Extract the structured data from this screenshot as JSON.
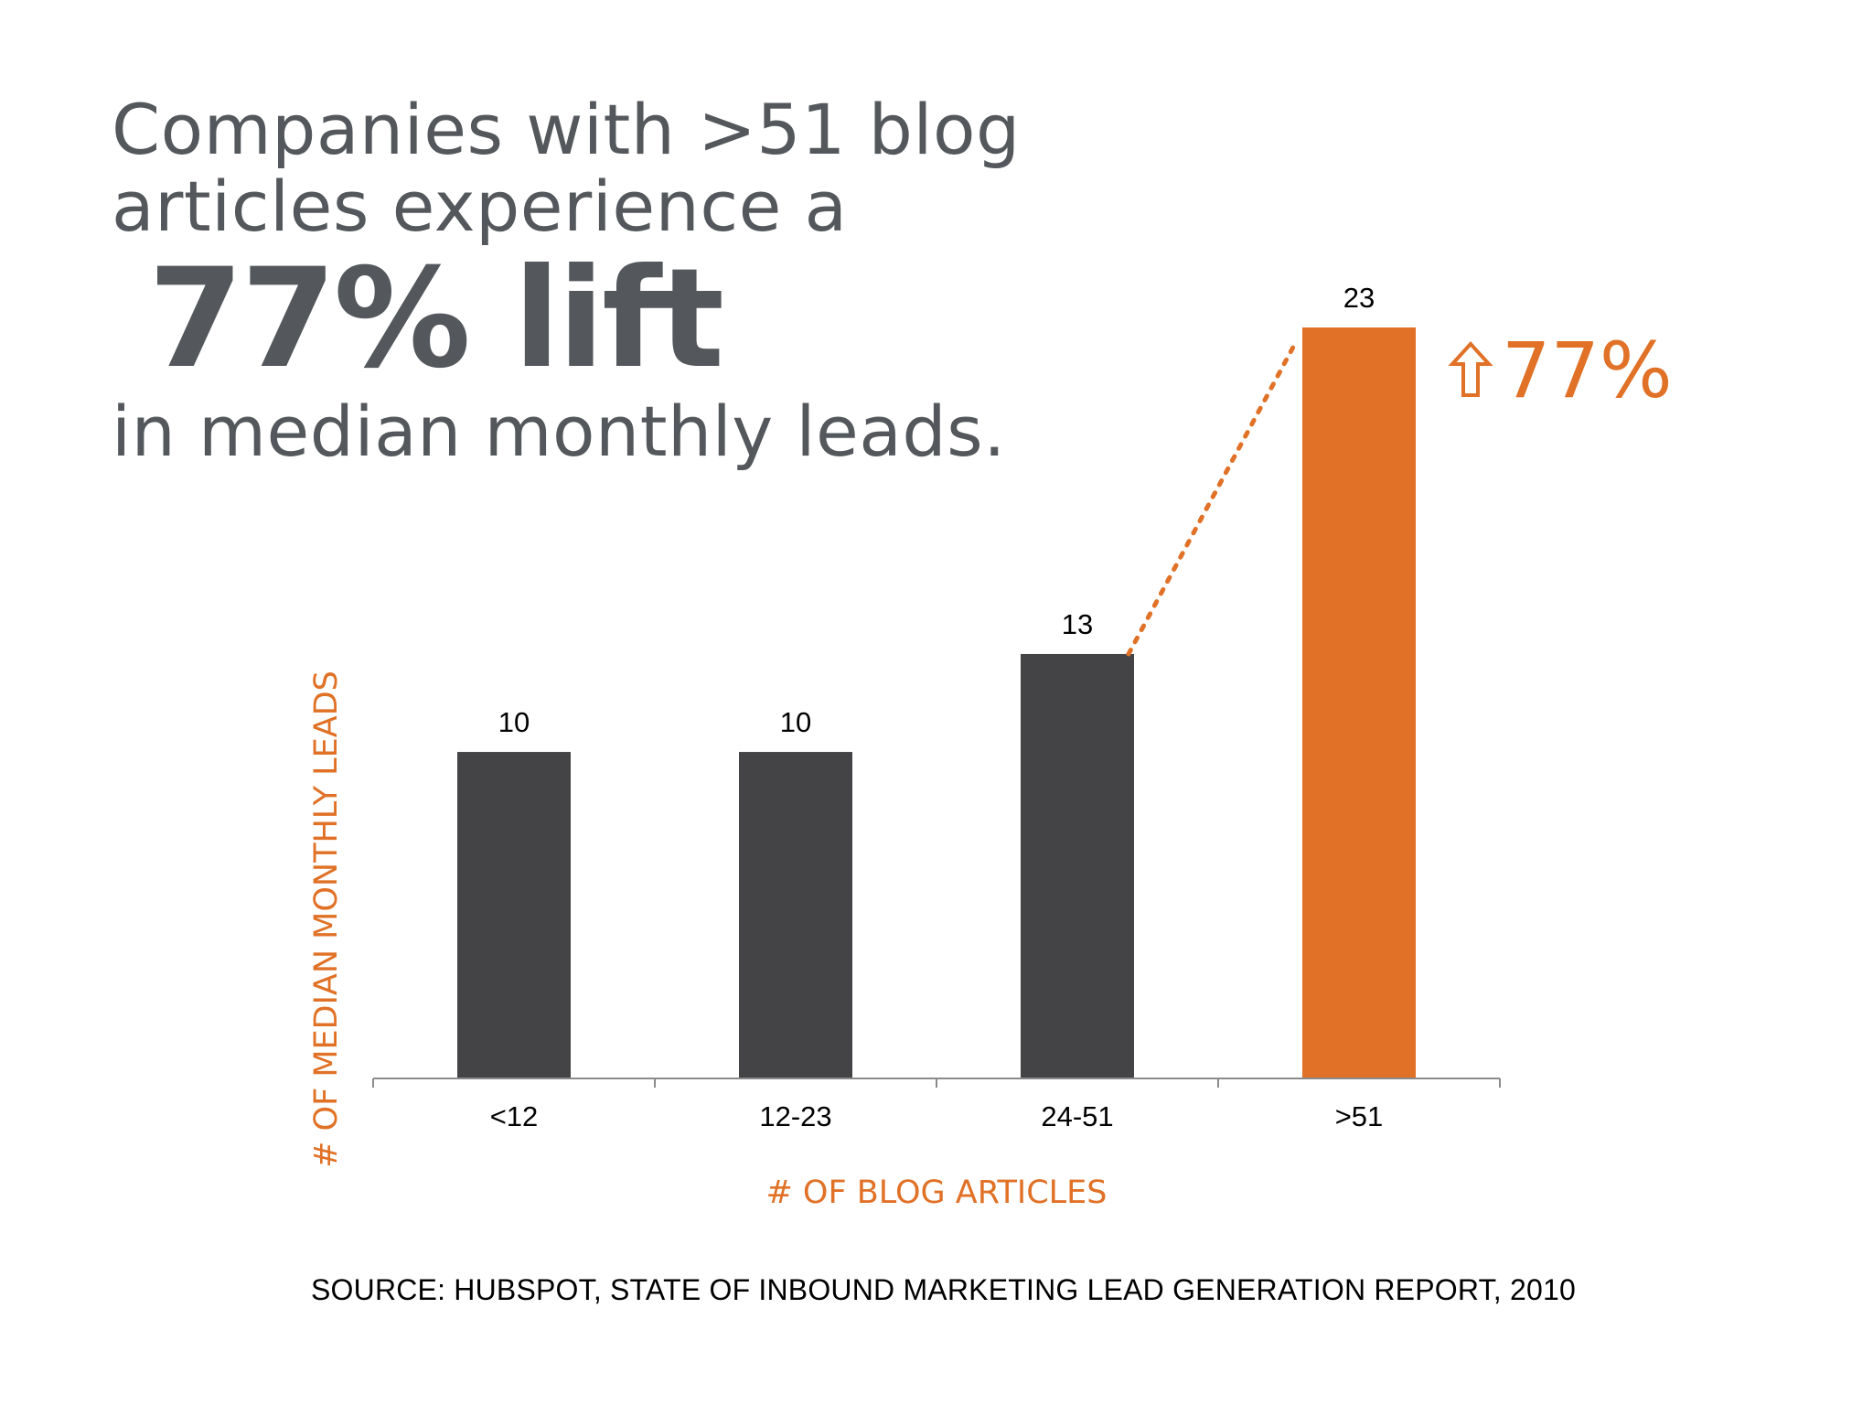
{
  "headline": {
    "line1": "Companies with >51 blog",
    "line2": "articles experience a",
    "big": "77% lift",
    "line3": "in median monthly leads."
  },
  "callout": {
    "arrow_icon": "up-arrow-outline-icon",
    "text": "77%"
  },
  "source": "SOURCE: HUBSPOT, STATE OF INBOUND MARKETING LEAD GENERATION REPORT, 2010",
  "colors": {
    "dark_bar": "#444447",
    "highlight": "#e07126",
    "headline": "#54585c"
  },
  "chart_data": {
    "type": "bar",
    "categories": [
      "<12",
      "12-23",
      "24-51",
      ">51"
    ],
    "values": [
      10,
      10,
      13,
      23
    ],
    "data_labels": [
      "10",
      "10",
      "13",
      "23"
    ],
    "highlight_index": 3,
    "xlabel": "# OF BLOG ARTICLES",
    "ylabel": "# OF MEDIAN MONTHLY LEADS",
    "ylim": [
      0,
      23
    ],
    "grid": false,
    "connector": {
      "from_index": 2,
      "to_index": 3,
      "style": "dotted"
    }
  }
}
